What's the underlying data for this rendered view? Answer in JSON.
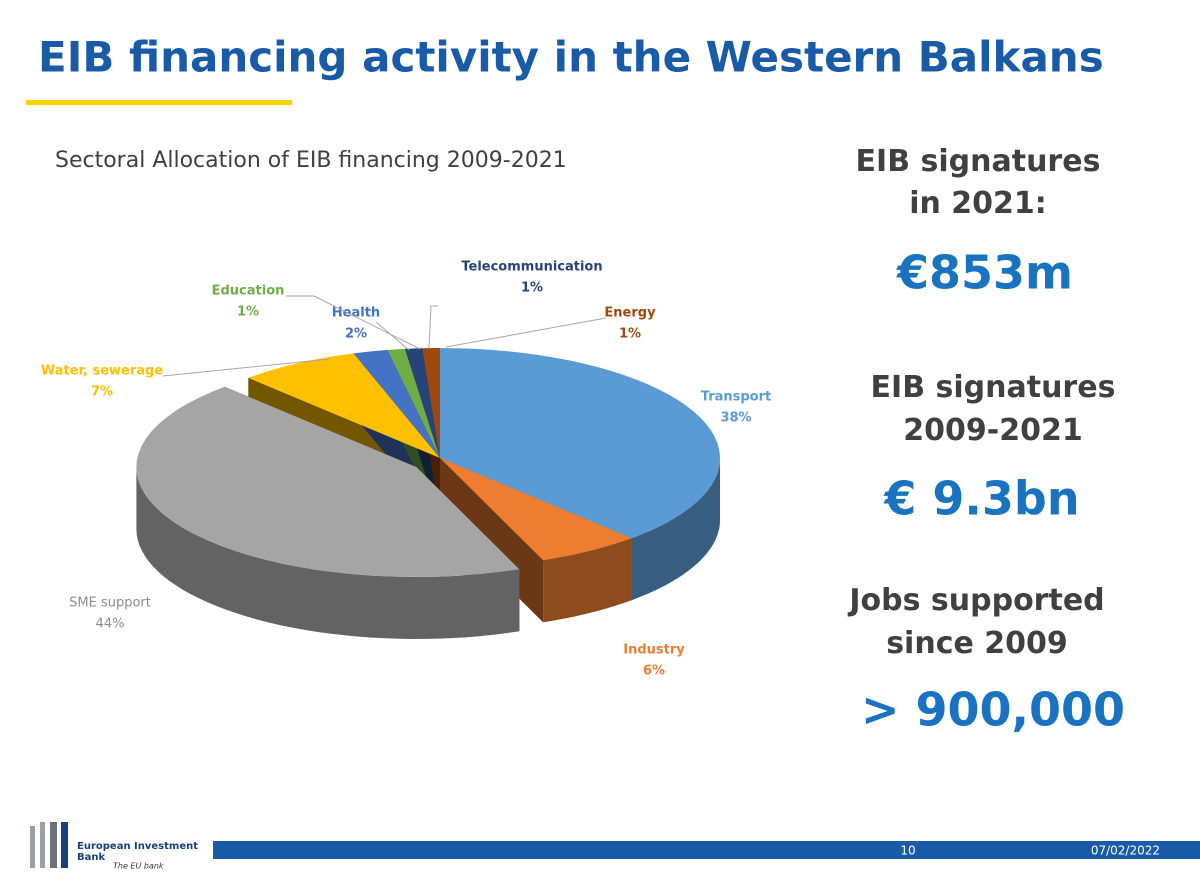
{
  "header": {
    "title": "EIB financing activity in the Western Balkans"
  },
  "chart_data": {
    "type": "pie3d",
    "title": "Sectoral Allocation of EIB financing 2009-2021",
    "categories": [
      "Transport",
      "Industry",
      "SME support",
      "Water, sewerage",
      "Health",
      "Education",
      "Telecommunication",
      "Energy"
    ],
    "values": [
      38,
      6,
      44,
      7,
      2,
      1,
      1,
      1
    ],
    "value_labels": [
      "38%",
      "6%",
      "44%",
      "7%",
      "2%",
      "1%",
      "1%",
      "1%"
    ],
    "colors": [
      "#5b9bd5",
      "#ed7d31",
      "#a5a5a5",
      "#ffc000",
      "#4472c4",
      "#70ad47",
      "#264478",
      "#9e480e"
    ],
    "exploded": "SME support"
  },
  "stats": [
    {
      "label": "EIB signatures in 2021:",
      "value": "€853m"
    },
    {
      "label": "EIB signatures 2009-2021",
      "value": "€ 9.3bn"
    },
    {
      "label": "Jobs supported since 2009",
      "value": "> 900,000"
    }
  ],
  "footer": {
    "logo": "European Investment Bank",
    "tagline": "The EU bank",
    "page": "10",
    "date": "07/02/2022"
  }
}
